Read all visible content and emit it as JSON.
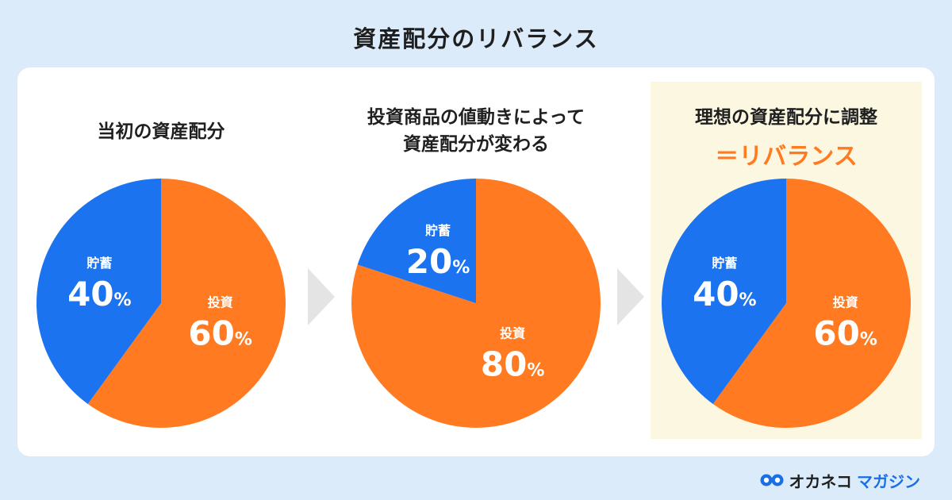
{
  "title": "資産配分のリバランス",
  "colors": {
    "saving": "#1c73f0",
    "investment": "#ff7a21",
    "highlight_bg": "#fcf7e1",
    "accent_text": "#ff7a21"
  },
  "panels": [
    {
      "heading_lines": [
        "当初の資産配分"
      ],
      "emphasis": ""
    },
    {
      "heading_lines": [
        "投資商品の値動きによって",
        "資産配分が変わる"
      ],
      "emphasis": ""
    },
    {
      "heading_lines": [
        "理想の資産配分に調整"
      ],
      "emphasis": "＝リバランス"
    }
  ],
  "chart_data": [
    {
      "type": "pie",
      "slices": [
        {
          "label": "貯蓄",
          "value": 40,
          "display": "40",
          "unit": "%",
          "color": "#1c73f0"
        },
        {
          "label": "投資",
          "value": 60,
          "display": "60",
          "unit": "%",
          "color": "#ff7a21"
        }
      ]
    },
    {
      "type": "pie",
      "slices": [
        {
          "label": "貯蓄",
          "value": 20,
          "display": "20",
          "unit": "%",
          "color": "#1c73f0"
        },
        {
          "label": "投資",
          "value": 80,
          "display": "80",
          "unit": "%",
          "color": "#ff7a21"
        }
      ]
    },
    {
      "type": "pie",
      "slices": [
        {
          "label": "貯蓄",
          "value": 40,
          "display": "40",
          "unit": "%",
          "color": "#1c73f0"
        },
        {
          "label": "投資",
          "value": 60,
          "display": "60",
          "unit": "%",
          "color": "#ff7a21"
        }
      ]
    }
  ],
  "logo": {
    "name": "オカネコ",
    "sub": "マガジン",
    "icon": "owl-icon"
  }
}
